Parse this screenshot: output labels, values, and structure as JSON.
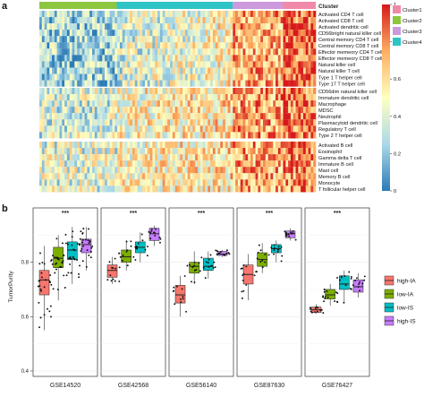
{
  "panels": {
    "a": "a",
    "b": "b"
  },
  "chart_data": [
    {
      "type": "heatmap",
      "panel": "a",
      "column_annotation_title": "Cluster",
      "cluster_legend": [
        {
          "label": "Cluster1",
          "color": "#f08aa8"
        },
        {
          "label": "Cluster2",
          "color": "#8dc63f"
        },
        {
          "label": "Cluster3",
          "color": "#cc99dd"
        },
        {
          "label": "Cluster4",
          "color": "#2ec4c6"
        }
      ],
      "column_cluster_order": [
        "Cluster2",
        "Cluster4",
        "Cluster3",
        "Cluster1"
      ],
      "column_cluster_fractions": [
        0.28,
        0.42,
        0.18,
        0.12
      ],
      "row_groups": [
        {
          "rows": [
            "Activated CD4 T cell",
            "Activated CD8 T cell",
            "Activated dendritic cell",
            "CD56bright natural killer cell",
            "Central memory CD4 T cell",
            "Central memory CD8 T cell",
            "Effector memeory CD4 T cell",
            "Effector memeory CD8 T cell",
            "Natural killer cell",
            "Natural killer T cell",
            "Type 1 T helper cell",
            "Type 17 T helper cell"
          ],
          "pattern": "low-high"
        },
        {
          "rows": [
            "CD56dim natural killer cell",
            "Immature dendritic cell",
            "Macrophage",
            "MDSC",
            "Neutrophil",
            "Plasmacytoid dendritic cell",
            "Regulatory T cell",
            "Type 2 T helper cell"
          ],
          "pattern": "high-low"
        },
        {
          "rows": [
            "Activated B cell",
            "Eosinophil",
            "Gamma delta T cell",
            "Immature B cell",
            "Mast cell",
            "Memory B cell",
            "Monocyte",
            "T follicular helper cell"
          ],
          "pattern": "high-low"
        }
      ],
      "colorbar": {
        "range": [
          0,
          1
        ],
        "ticks": [
          0,
          0.2,
          0.4,
          0.6,
          0.8,
          1
        ],
        "tick_labels": [
          "0",
          "0.2",
          "0.4",
          "0.6",
          "0.8",
          "1"
        ],
        "colors": [
          "#2c7bb6",
          "#abd9e9",
          "#ffffbf",
          "#fdae61",
          "#d7191c"
        ]
      }
    },
    {
      "type": "box",
      "panel": "b",
      "ylabel": "TumorPurity",
      "ylim": [
        0.38,
        1.0
      ],
      "yticks": [
        0.4,
        0.6,
        0.8
      ],
      "ytick_labels": [
        "0.4",
        "0.6",
        "0.8"
      ],
      "groups_legend": [
        {
          "label": "high-IA",
          "color": "#f8766d"
        },
        {
          "label": "low-IA",
          "color": "#7cae00"
        },
        {
          "label": "low-IS",
          "color": "#00bfc4"
        },
        {
          "label": "high-IS",
          "color": "#c77cff"
        }
      ],
      "facets": [
        {
          "name": "GSE14520",
          "significance": "***",
          "boxes": [
            {
              "group": "high-IA",
              "min": 0.55,
              "q1": 0.68,
              "median": 0.735,
              "q3": 0.77,
              "max": 0.86
            },
            {
              "group": "low-IA",
              "min": 0.66,
              "q1": 0.78,
              "median": 0.815,
              "q3": 0.855,
              "max": 0.9
            },
            {
              "group": "low-IS",
              "min": 0.72,
              "q1": 0.81,
              "median": 0.845,
              "q3": 0.875,
              "max": 0.93
            },
            {
              "group": "high-IS",
              "min": 0.77,
              "q1": 0.835,
              "median": 0.865,
              "q3": 0.885,
              "max": 0.93
            }
          ]
        },
        {
          "name": "GSE42568",
          "significance": "***",
          "boxes": [
            {
              "group": "high-IA",
              "min": 0.72,
              "q1": 0.745,
              "median": 0.77,
              "q3": 0.79,
              "max": 0.82
            },
            {
              "group": "low-IA",
              "min": 0.77,
              "q1": 0.8,
              "median": 0.82,
              "q3": 0.845,
              "max": 0.88
            },
            {
              "group": "low-IS",
              "min": 0.8,
              "q1": 0.835,
              "median": 0.855,
              "q3": 0.875,
              "max": 0.91
            },
            {
              "group": "high-IS",
              "min": 0.86,
              "q1": 0.88,
              "median": 0.905,
              "q3": 0.925,
              "max": 0.935
            }
          ]
        },
        {
          "name": "GSE56140",
          "significance": "***",
          "boxes": [
            {
              "group": "high-IA",
              "min": 0.6,
              "q1": 0.65,
              "median": 0.68,
              "q3": 0.715,
              "max": 0.75
            },
            {
              "group": "low-IA",
              "min": 0.72,
              "q1": 0.76,
              "median": 0.785,
              "q3": 0.8,
              "max": 0.84
            },
            {
              "group": "low-IS",
              "min": 0.74,
              "q1": 0.77,
              "median": 0.785,
              "q3": 0.815,
              "max": 0.84
            },
            {
              "group": "high-IS",
              "min": 0.82,
              "q1": 0.825,
              "median": 0.83,
              "q3": 0.84,
              "max": 0.845
            }
          ]
        },
        {
          "name": "GSE87630",
          "significance": "***",
          "boxes": [
            {
              "group": "high-IA",
              "min": 0.66,
              "q1": 0.72,
              "median": 0.755,
              "q3": 0.79,
              "max": 0.83
            },
            {
              "group": "low-IA",
              "min": 0.76,
              "q1": 0.785,
              "median": 0.81,
              "q3": 0.835,
              "max": 0.87
            },
            {
              "group": "low-IS",
              "min": 0.8,
              "q1": 0.835,
              "median": 0.85,
              "q3": 0.865,
              "max": 0.88
            },
            {
              "group": "high-IS",
              "min": 0.88,
              "q1": 0.89,
              "median": 0.905,
              "q3": 0.915,
              "max": 0.925
            }
          ]
        },
        {
          "name": "GSE76427",
          "significance": "***",
          "boxes": [
            {
              "group": "high-IA",
              "min": 0.61,
              "q1": 0.615,
              "median": 0.625,
              "q3": 0.635,
              "max": 0.645
            },
            {
              "group": "low-IA",
              "min": 0.64,
              "q1": 0.665,
              "median": 0.68,
              "q3": 0.7,
              "max": 0.72
            },
            {
              "group": "low-IS",
              "min": 0.65,
              "q1": 0.7,
              "median": 0.72,
              "q3": 0.75,
              "max": 0.77
            },
            {
              "group": "high-IS",
              "min": 0.67,
              "q1": 0.69,
              "median": 0.71,
              "q3": 0.735,
              "max": 0.76
            }
          ]
        }
      ]
    }
  ]
}
